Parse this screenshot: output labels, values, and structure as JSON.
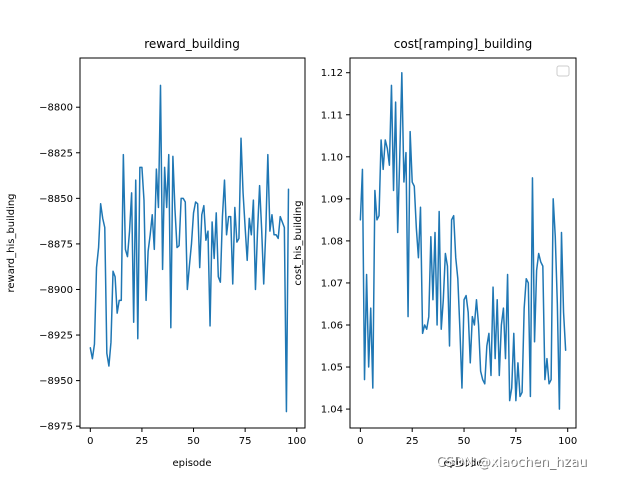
{
  "chart_data": [
    {
      "type": "line",
      "title": "reward_building",
      "xlabel": "episode",
      "ylabel": "reward_his_building",
      "xlim": [
        -5,
        104
      ],
      "ylim": [
        -8976,
        -8773
      ],
      "xticks": [
        0,
        25,
        50,
        75,
        100
      ],
      "yticks": [
        -8975,
        -8950,
        -8925,
        -8900,
        -8875,
        -8850,
        -8825,
        -8800
      ],
      "ytick_labels": [
        "−8975",
        "−8950",
        "−8925",
        "−8900",
        "−8875",
        "−8850",
        "−8825",
        "−8800"
      ],
      "xtick_labels": [
        "0",
        "25",
        "50",
        "75",
        "100"
      ],
      "legend": false,
      "grid": false,
      "color": "#1f77b4",
      "series": [
        {
          "x": [
            0,
            1,
            2,
            3,
            4,
            5,
            6,
            7,
            8,
            9,
            10,
            11,
            12,
            13,
            14,
            15,
            16,
            17,
            18,
            19,
            20,
            21,
            22,
            23,
            24,
            25,
            26,
            27,
            28,
            29,
            30,
            31,
            32,
            33,
            34,
            35,
            36,
            37,
            38,
            39,
            40,
            41,
            42,
            43,
            44,
            45,
            46,
            47,
            48,
            49,
            50,
            51,
            52,
            53,
            54,
            55,
            56,
            57,
            58,
            59,
            60,
            61,
            62,
            63,
            64,
            65,
            66,
            67,
            68,
            69,
            70,
            71,
            72,
            73,
            74,
            75,
            76,
            77,
            78,
            79,
            80,
            81,
            82,
            83,
            84,
            85,
            86,
            87,
            88,
            89,
            90,
            91,
            92,
            93,
            94,
            95,
            96
          ],
          "y": [
            -8932,
            -8938,
            -8930,
            -8888,
            -8877,
            -8853,
            -8861,
            -8866,
            -8935,
            -8942,
            -8929,
            -8890,
            -8893,
            -8913,
            -8906,
            -8906,
            -8826,
            -8878,
            -8882,
            -8868,
            -8847,
            -8918,
            -8840,
            -8927,
            -8833,
            -8833,
            -8851,
            -8906,
            -8879,
            -8870,
            -8859,
            -8878,
            -8834,
            -8855,
            -8788,
            -8889,
            -8833,
            -8855,
            -8826,
            -8921,
            -8827,
            -8856,
            -8877,
            -8876,
            -8850,
            -8850,
            -8852,
            -8900,
            -8887,
            -8875,
            -8858,
            -8852,
            -8853,
            -8888,
            -8859,
            -8854,
            -8873,
            -8868,
            -8920,
            -8863,
            -8883,
            -8858,
            -8893,
            -8896,
            -8860,
            -8840,
            -8870,
            -8860,
            -8860,
            -8897,
            -8855,
            -8874,
            -8872,
            -8817,
            -8847,
            -8866,
            -8884,
            -8861,
            -8870,
            -8851,
            -8900,
            -8868,
            -8843,
            -8867,
            -8897,
            -8868,
            -8826,
            -8868,
            -8859,
            -8870,
            -8870,
            -8872,
            -8860,
            -8863,
            -8866,
            -8967,
            -8845
          ]
        }
      ]
    },
    {
      "type": "line",
      "title": "cost[ramping]_building",
      "xlabel": "episode",
      "ylabel": "cost_his_building",
      "xlim": [
        -5,
        104
      ],
      "ylim": [
        1.0355,
        1.1235
      ],
      "xticks": [
        0,
        25,
        50,
        75,
        100
      ],
      "yticks": [
        1.04,
        1.05,
        1.06,
        1.07,
        1.08,
        1.09,
        1.1,
        1.11,
        1.12
      ],
      "ytick_labels": [
        "1.04",
        "1.05",
        "1.06",
        "1.07",
        "1.08",
        "1.09",
        "1.10",
        "1.11",
        "1.12"
      ],
      "xtick_labels": [
        "0",
        "25",
        "50",
        "75",
        "100"
      ],
      "legend": true,
      "legend_position": "top-right",
      "grid": false,
      "color": "#1f77b4",
      "series": [
        {
          "x": [
            0,
            1,
            2,
            3,
            4,
            5,
            6,
            7,
            8,
            9,
            10,
            11,
            12,
            13,
            14,
            15,
            16,
            17,
            18,
            19,
            20,
            21,
            22,
            23,
            24,
            25,
            26,
            27,
            28,
            29,
            30,
            31,
            32,
            33,
            34,
            35,
            36,
            37,
            38,
            39,
            40,
            41,
            42,
            43,
            44,
            45,
            46,
            47,
            48,
            49,
            50,
            51,
            52,
            53,
            54,
            55,
            56,
            57,
            58,
            59,
            60,
            61,
            62,
            63,
            64,
            65,
            66,
            67,
            68,
            69,
            70,
            71,
            72,
            73,
            74,
            75,
            76,
            77,
            78,
            79,
            80,
            81,
            82,
            83,
            84,
            85,
            86,
            87,
            88,
            89,
            90,
            91,
            92,
            93,
            94,
            95,
            96,
            97,
            98,
            99
          ],
          "y": [
            1.085,
            1.097,
            1.047,
            1.072,
            1.05,
            1.064,
            1.045,
            1.092,
            1.085,
            1.086,
            1.104,
            1.097,
            1.104,
            1.102,
            1.098,
            1.117,
            1.092,
            1.113,
            1.082,
            1.1,
            1.12,
            1.094,
            1.101,
            1.062,
            1.106,
            1.094,
            1.093,
            1.083,
            1.076,
            1.088,
            1.058,
            1.06,
            1.059,
            1.062,
            1.081,
            1.066,
            1.082,
            1.06,
            1.087,
            1.059,
            1.066,
            1.077,
            1.074,
            1.055,
            1.085,
            1.086,
            1.076,
            1.071,
            1.059,
            1.045,
            1.066,
            1.067,
            1.063,
            1.051,
            1.062,
            1.06,
            1.066,
            1.06,
            1.049,
            1.047,
            1.046,
            1.055,
            1.058,
            1.048,
            1.069,
            1.052,
            1.066,
            1.048,
            1.06,
            1.064,
            1.052,
            1.072,
            1.042,
            1.045,
            1.058,
            1.042,
            1.051,
            1.043,
            1.044,
            1.064,
            1.071,
            1.07,
            1.043,
            1.095,
            1.056,
            1.073,
            1.077,
            1.075,
            1.074,
            1.047,
            1.052,
            1.046,
            1.047,
            1.09,
            1.081,
            1.065,
            1.04,
            1.082,
            1.063,
            1.054
          ]
        }
      ]
    }
  ],
  "watermark": "CSDN @xiaochen_hzau"
}
